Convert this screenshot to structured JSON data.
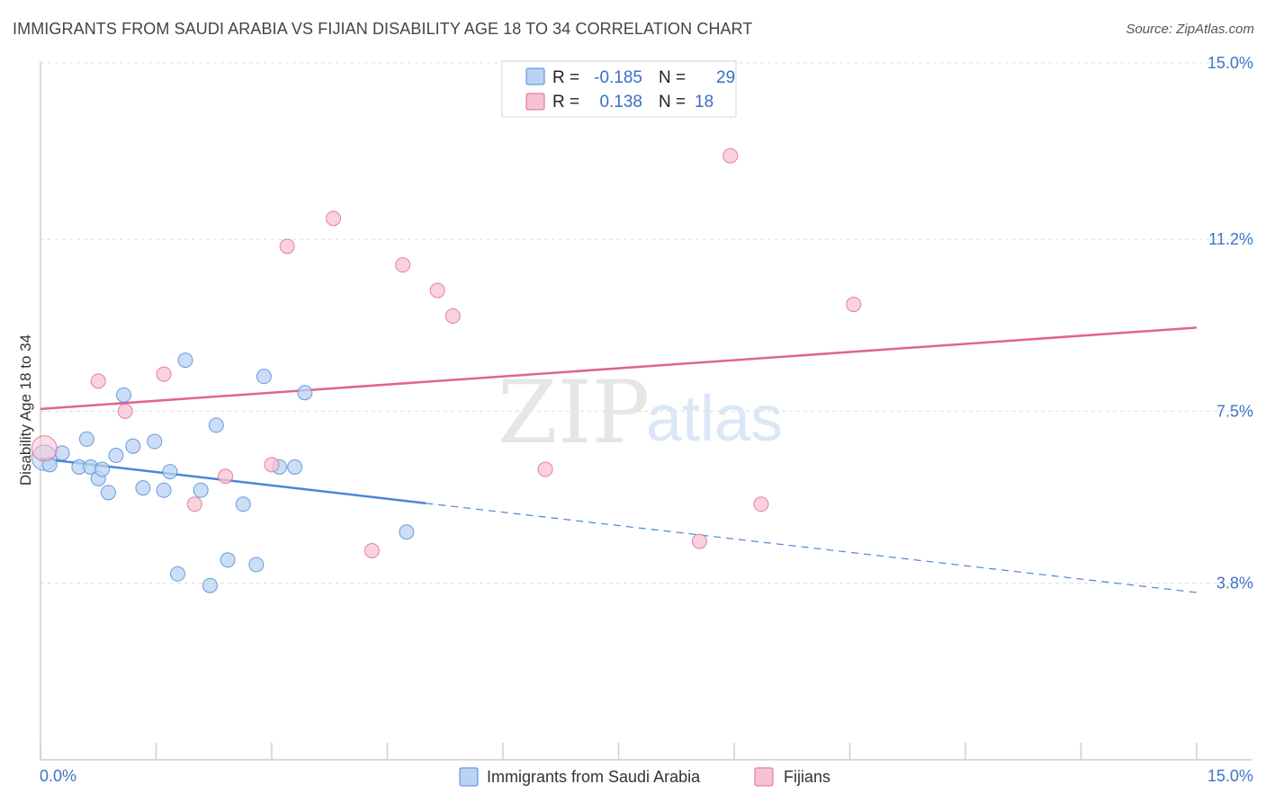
{
  "header": {
    "title": "IMMIGRANTS FROM SAUDI ARABIA VS FIJIAN DISABILITY AGE 18 TO 34 CORRELATION CHART",
    "source": "Source: ZipAtlas.com"
  },
  "watermark": {
    "zip": "ZIP",
    "atlas": "atlas"
  },
  "legend": {
    "r_label": "R =",
    "n_label": "N =",
    "rows": [
      {
        "r": "-0.185",
        "n": "29"
      },
      {
        "r": "0.138",
        "n": "18"
      }
    ]
  },
  "chart_data": {
    "type": "scatter",
    "title": "IMMIGRANTS FROM SAUDI ARABIA VS FIJIAN DISABILITY AGE 18 TO 34 CORRELATION CHART",
    "xlabel": "",
    "ylabel": "Disability Age 18 to 34",
    "xlim": [
      0,
      15
    ],
    "ylim": [
      0,
      15.5
    ],
    "x_tick_labels": [
      "0.0%",
      "15.0%"
    ],
    "y_ticks": [
      3.8,
      7.5,
      11.2,
      15.0
    ],
    "y_tick_labels": [
      "3.8%",
      "7.5%",
      "11.2%",
      "15.0%"
    ],
    "colors": {
      "blue": "#4a86d8",
      "blue_fill": "#b9d3f3",
      "pink": "#e0648f",
      "pink_fill": "#f7c3d3"
    },
    "series": [
      {
        "name": "Immigrants from Saudi Arabia",
        "color": "#4a86d8",
        "points": [
          [
            0.05,
            6.5
          ],
          [
            0.12,
            6.35
          ],
          [
            0.28,
            6.6
          ],
          [
            0.5,
            6.3
          ],
          [
            0.6,
            6.9
          ],
          [
            0.65,
            6.3
          ],
          [
            0.75,
            6.05
          ],
          [
            0.8,
            6.25
          ],
          [
            0.88,
            5.75
          ],
          [
            0.98,
            6.55
          ],
          [
            1.08,
            7.85
          ],
          [
            1.2,
            6.75
          ],
          [
            1.33,
            5.85
          ],
          [
            1.48,
            6.85
          ],
          [
            1.6,
            5.8
          ],
          [
            1.68,
            6.2
          ],
          [
            1.78,
            4.0
          ],
          [
            1.88,
            8.6
          ],
          [
            2.08,
            5.8
          ],
          [
            2.2,
            3.75
          ],
          [
            2.28,
            7.2
          ],
          [
            2.43,
            4.3
          ],
          [
            2.63,
            5.5
          ],
          [
            2.8,
            4.2
          ],
          [
            2.9,
            8.25
          ],
          [
            3.1,
            6.3
          ],
          [
            3.3,
            6.3
          ],
          [
            3.43,
            7.9
          ],
          [
            4.75,
            4.9
          ]
        ],
        "trend": {
          "x0": 0,
          "y0": 6.48,
          "x1": 15,
          "y1": 3.6,
          "solid_until_x": 5.0
        }
      },
      {
        "name": "Fijians",
        "color": "#e0648f",
        "points": [
          [
            0.05,
            6.7
          ],
          [
            0.75,
            8.15
          ],
          [
            1.1,
            7.5
          ],
          [
            1.6,
            8.3
          ],
          [
            2.0,
            5.5
          ],
          [
            2.4,
            6.1
          ],
          [
            3.0,
            6.35
          ],
          [
            3.2,
            11.05
          ],
          [
            3.8,
            11.65
          ],
          [
            4.3,
            4.5
          ],
          [
            4.7,
            10.65
          ],
          [
            5.15,
            10.1
          ],
          [
            5.35,
            9.55
          ],
          [
            6.55,
            6.25
          ],
          [
            8.55,
            4.7
          ],
          [
            8.95,
            13.0
          ],
          [
            9.35,
            5.5
          ],
          [
            10.55,
            9.8
          ]
        ],
        "trend": {
          "x0": 0,
          "y0": 7.55,
          "x1": 15,
          "y1": 9.3
        }
      }
    ]
  }
}
